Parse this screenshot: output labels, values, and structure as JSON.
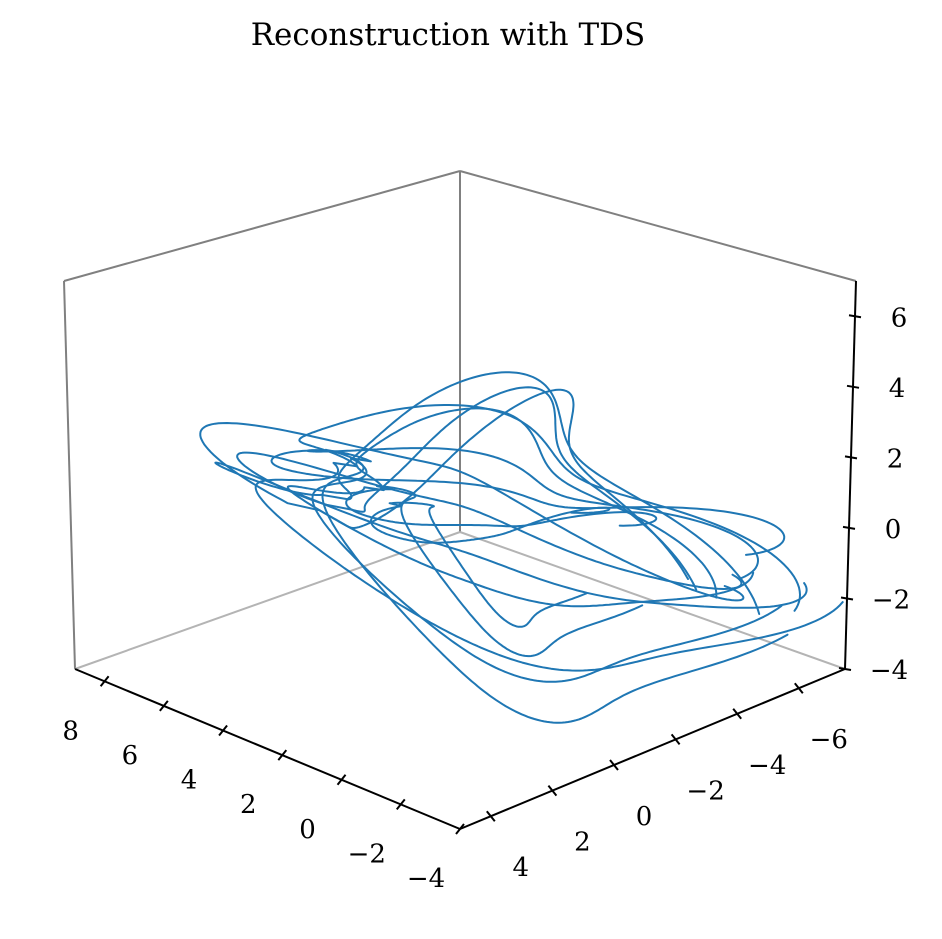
{
  "chart_data": {
    "type": "line",
    "projection": "3d",
    "title": "Reconstruction with TDS",
    "xlabel": "",
    "ylabel": "",
    "zlabel": "",
    "grid": false,
    "series_color": "#1f77b4",
    "x_axis": {
      "range": [
        -4,
        9
      ],
      "ticks": [
        8,
        6,
        4,
        2,
        0,
        -2,
        -4
      ],
      "tick_labels": [
        "8",
        "6",
        "4",
        "2",
        "0",
        "−2",
        "−4"
      ]
    },
    "y_axis": {
      "range": [
        -7.5,
        5
      ],
      "ticks": [
        4,
        2,
        0,
        -2,
        -4,
        -6
      ],
      "tick_labels": [
        "4",
        "2",
        "0",
        "−2",
        "−4",
        "−6"
      ]
    },
    "z_axis": {
      "range": [
        -4,
        7
      ],
      "ticks": [
        6,
        4,
        2,
        0,
        -2,
        -4
      ],
      "tick_labels": [
        "6",
        "4",
        "2",
        "0",
        "−2",
        "−4"
      ]
    },
    "trajectory": {
      "description_source": "estimated from projected curve",
      "loops": [
        {
          "amp": 1.0,
          "phase": 0.0,
          "zamp": 4.6,
          "zoff": 0.6
        },
        {
          "amp": 0.92,
          "phase": 0.35,
          "zamp": 4.4,
          "zoff": 0.8
        },
        {
          "amp": 1.08,
          "phase": 0.7,
          "zamp": 4.9,
          "zoff": 0.4
        },
        {
          "amp": 0.86,
          "phase": 1.05,
          "zamp": 4.1,
          "zoff": 0.9
        },
        {
          "amp": 1.12,
          "phase": 1.4,
          "zamp": 5.1,
          "zoff": 0.3
        },
        {
          "amp": 0.95,
          "phase": 1.75,
          "zamp": 4.5,
          "zoff": 0.7
        },
        {
          "amp": 1.03,
          "phase": 2.1,
          "zamp": 4.8,
          "zoff": 0.5
        },
        {
          "amp": 0.6,
          "phase": 2.45,
          "zamp": 2.9,
          "zoff": 0.9
        },
        {
          "amp": 0.45,
          "phase": 2.8,
          "zamp": 2.2,
          "zoff": 1.2
        }
      ]
    }
  }
}
